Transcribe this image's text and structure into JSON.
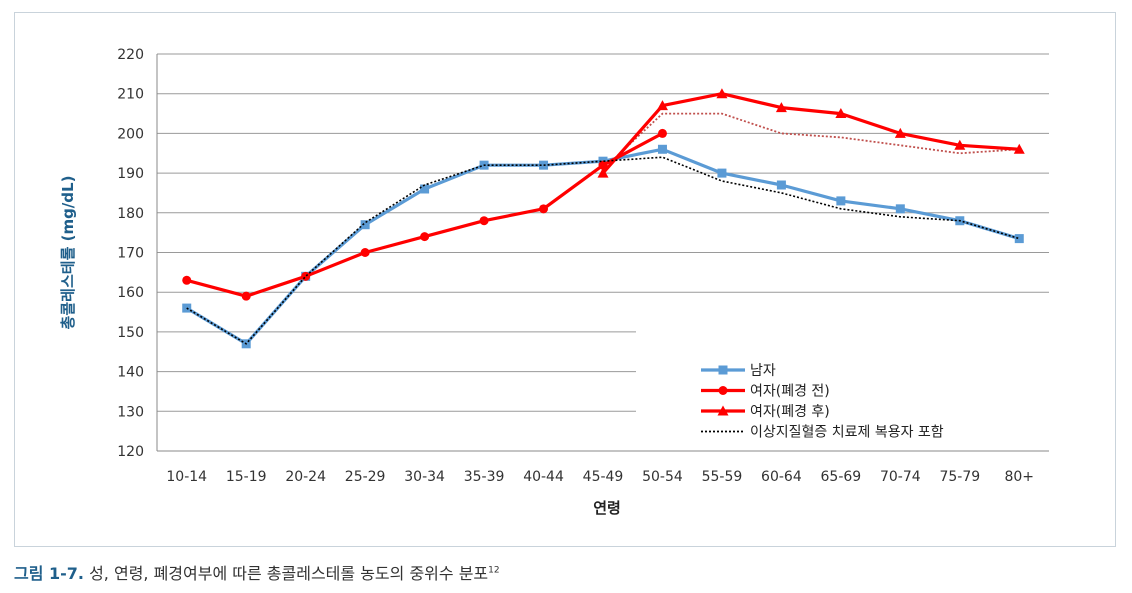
{
  "chart_data": {
    "type": "line",
    "categories": [
      "10-14",
      "15-19",
      "20-24",
      "25-29",
      "30-34",
      "35-39",
      "40-44",
      "45-49",
      "50-54",
      "55-59",
      "60-64",
      "65-69",
      "70-74",
      "75-79",
      "80+"
    ],
    "xlabel": "연령",
    "ylabel": "총콜레스테롤 (mg/dL)",
    "ylim": [
      120,
      220
    ],
    "yticks": [
      120,
      130,
      140,
      150,
      160,
      170,
      180,
      190,
      200,
      210,
      220
    ],
    "grid": true,
    "legend_position": "bottom-right",
    "series": [
      {
        "name": "남자",
        "color": "#5b9bd5",
        "marker": "square",
        "style": "solid",
        "values": [
          156,
          147,
          164,
          177,
          186,
          192,
          192,
          193,
          196,
          190,
          187,
          183,
          181,
          178,
          173.5
        ]
      },
      {
        "name": "여자(폐경 전)",
        "color": "#ff0000",
        "marker": "circle",
        "style": "solid",
        "values": [
          163,
          159,
          164,
          170,
          174,
          178,
          181,
          192,
          200,
          null,
          null,
          null,
          null,
          null,
          null
        ]
      },
      {
        "name": "여자(폐경 후)",
        "color": "#ff0000",
        "marker": "triangle",
        "style": "solid",
        "values": [
          null,
          null,
          null,
          null,
          null,
          null,
          null,
          190,
          207,
          210,
          206.5,
          205,
          200,
          197,
          196
        ]
      },
      {
        "name": "이상지질혈증 치료제 복용자 포함",
        "color": "#000000",
        "marker": "none",
        "style": "dotted",
        "values": [
          156,
          147,
          164,
          177.5,
          187,
          192,
          192,
          193,
          194,
          188,
          185,
          181,
          179,
          178,
          173.5
        ]
      }
    ],
    "extra_lines": [
      {
        "color": "#c0504d",
        "style": "dotted",
        "values": [
          null,
          null,
          null,
          null,
          null,
          null,
          null,
          191,
          205,
          205,
          200,
          199,
          197,
          195,
          196
        ]
      }
    ]
  },
  "caption": {
    "figure_number": "그림 1-7.",
    "text": " 성, 연령, 폐경여부에 따른 총콜레스테롤 농도의 중위수 분포",
    "superscript": "12"
  }
}
